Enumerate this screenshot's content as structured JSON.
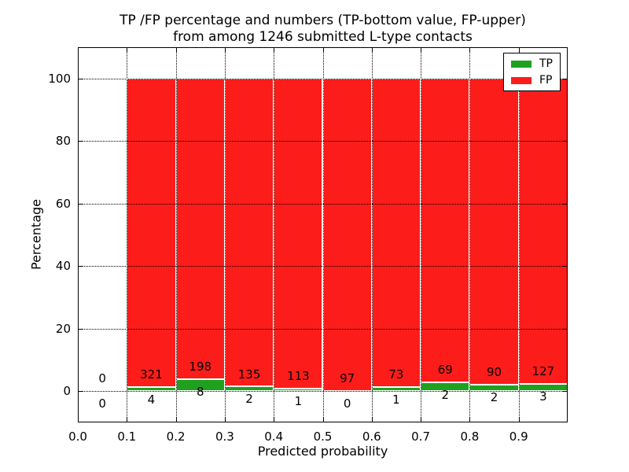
{
  "figure": {
    "title_line1": "TP /FP percentage and numbers (TP-bottom value, FP-upper)",
    "title_line2": "from among 1246 submitted L-type contacts",
    "background": "#ffffff"
  },
  "axes": {
    "xlabel": "Predicted probability",
    "ylabel": "Percentage",
    "xlim": [
      0.0,
      1.0
    ],
    "ylim": [
      -10,
      110
    ],
    "grid": "dotted black, both axes",
    "xticks": [
      {
        "label": "0.0",
        "value": 0.0
      },
      {
        "label": "0.1",
        "value": 0.1
      },
      {
        "label": "0.2",
        "value": 0.2
      },
      {
        "label": "0.3",
        "value": 0.3
      },
      {
        "label": "0.4",
        "value": 0.4
      },
      {
        "label": "0.5",
        "value": 0.5
      },
      {
        "label": "0.6",
        "value": 0.6
      },
      {
        "label": "0.7",
        "value": 0.7
      },
      {
        "label": "0.8",
        "value": 0.8
      },
      {
        "label": "0.9",
        "value": 0.9
      }
    ],
    "yticks": [
      {
        "label": "0",
        "value": 0
      },
      {
        "label": "20",
        "value": 20
      },
      {
        "label": "40",
        "value": 40
      },
      {
        "label": "60",
        "value": 60
      },
      {
        "label": "80",
        "value": 80
      },
      {
        "label": "100",
        "value": 100
      }
    ]
  },
  "legend": {
    "position": "upper right",
    "items": [
      {
        "label": "TP",
        "color": "#1fa11f"
      },
      {
        "label": "FP",
        "color": "#fc1d1a"
      }
    ]
  },
  "chart_data": {
    "type": "bar",
    "stacked": true,
    "normalized_to_percent": 100,
    "bar_edge_color": "#ffffff",
    "series": [
      {
        "name": "TP",
        "color": "#1fa11f"
      },
      {
        "name": "FP",
        "color": "#fc1d1a"
      }
    ],
    "bins": [
      {
        "range": [
          0.0,
          0.1
        ],
        "tp": 0,
        "fp": 0
      },
      {
        "range": [
          0.1,
          0.2
        ],
        "tp": 4,
        "fp": 321
      },
      {
        "range": [
          0.2,
          0.3
        ],
        "tp": 8,
        "fp": 198
      },
      {
        "range": [
          0.3,
          0.4
        ],
        "tp": 2,
        "fp": 135
      },
      {
        "range": [
          0.4,
          0.5
        ],
        "tp": 1,
        "fp": 113
      },
      {
        "range": [
          0.5,
          0.6
        ],
        "tp": 0,
        "fp": 97
      },
      {
        "range": [
          0.6,
          0.7
        ],
        "tp": 1,
        "fp": 73
      },
      {
        "range": [
          0.7,
          0.8
        ],
        "tp": 2,
        "fp": 69
      },
      {
        "range": [
          0.8,
          0.9
        ],
        "tp": 2,
        "fp": 90
      },
      {
        "range": [
          0.9,
          1.0
        ],
        "tp": 3,
        "fp": 127
      }
    ]
  }
}
